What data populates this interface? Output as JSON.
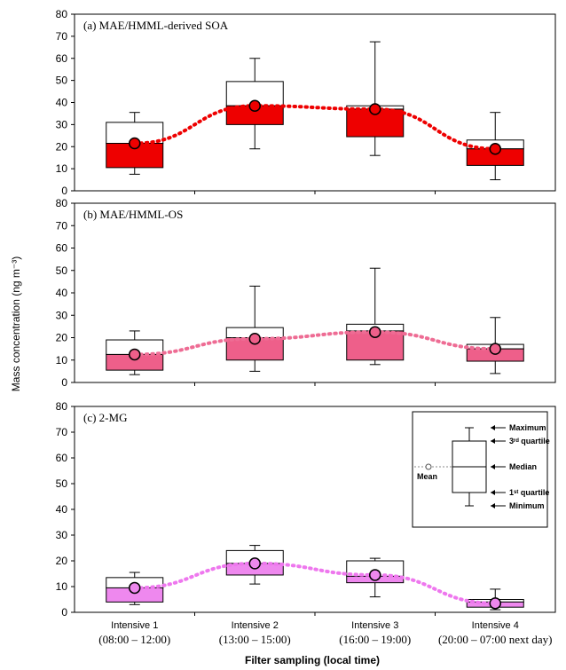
{
  "chart_data": {
    "type": "box",
    "ylabel": "Mass concentration (ng m⁻³)",
    "xlabel": "Filter sampling (local time)",
    "categories": [
      "Intensive 1",
      "Intensive 2",
      "Intensive 3",
      "Intensive 4"
    ],
    "category_times": [
      "(08:00 – 12:00)",
      "(13:00 – 15:00)",
      "(16:00 – 19:00)",
      "(20:00 – 07:00 next day)"
    ],
    "panels": [
      {
        "title": "(a) MAE/HMML-derived SOA",
        "ylim": [
          0,
          80
        ],
        "yticks": [
          0,
          10,
          20,
          30,
          40,
          50,
          60,
          70,
          80
        ],
        "lower_fill": "#ee0000",
        "mean_fill": "#ee0000",
        "line_color": "#ee0000",
        "boxes": [
          {
            "min": 7.5,
            "q1": 10.5,
            "median": 21.5,
            "q3": 31,
            "max": 35.5,
            "mean": 21.5
          },
          {
            "min": 19,
            "q1": 30,
            "median": 38.5,
            "q3": 49.5,
            "max": 60,
            "mean": 38.5
          },
          {
            "min": 16,
            "q1": 24.5,
            "median": 37,
            "q3": 38.5,
            "max": 67.5,
            "mean": 37
          },
          {
            "min": 5,
            "q1": 11.5,
            "median": 19,
            "q3": 23,
            "max": 35.5,
            "mean": 19
          }
        ]
      },
      {
        "title": "(b) MAE/HMML-OS",
        "ylim": [
          0,
          80
        ],
        "yticks": [
          0,
          10,
          20,
          30,
          40,
          50,
          60,
          70,
          80
        ],
        "lower_fill": "#ee5f8a",
        "mean_fill": "#ee5f8a",
        "line_color": "#ee6c94",
        "boxes": [
          {
            "min": 3.5,
            "q1": 5.5,
            "median": 12.5,
            "q3": 19,
            "max": 23,
            "mean": 12.5
          },
          {
            "min": 5,
            "q1": 10,
            "median": 20,
            "q3": 24.5,
            "max": 43,
            "mean": 19.5
          },
          {
            "min": 8,
            "q1": 10,
            "median": 23,
            "q3": 26,
            "max": 51,
            "mean": 22.5
          },
          {
            "min": 4,
            "q1": 9.5,
            "median": 15,
            "q3": 17,
            "max": 29,
            "mean": 15
          }
        ]
      },
      {
        "title": "(c) 2-MG",
        "ylim": [
          0,
          80
        ],
        "yticks": [
          0,
          10,
          20,
          30,
          40,
          50,
          60,
          70,
          80
        ],
        "lower_fill": "#ee88ee",
        "mean_fill": "#ee88ee",
        "line_color": "#ee77ee",
        "boxes": [
          {
            "min": 3,
            "q1": 4,
            "median": 9.5,
            "q3": 13.5,
            "max": 15.5,
            "mean": 9.5
          },
          {
            "min": 11,
            "q1": 14.5,
            "median": 19,
            "q3": 24,
            "max": 26,
            "mean": 19
          },
          {
            "min": 6,
            "q1": 11.5,
            "median": 14,
            "q3": 20,
            "max": 21,
            "mean": 14.5
          },
          {
            "min": 1,
            "q1": 2,
            "median": 4,
            "q3": 5,
            "max": 9,
            "mean": 3.5
          }
        ]
      }
    ],
    "legend": {
      "placement": "inside-top-right of panel (c)",
      "labels": {
        "maximum": "Maximum",
        "q3": "3ʳᵈ quartile",
        "median": "Median",
        "mean": "Mean",
        "q1": "1ˢᵗ quartile",
        "minimum": "Minimum"
      }
    }
  }
}
